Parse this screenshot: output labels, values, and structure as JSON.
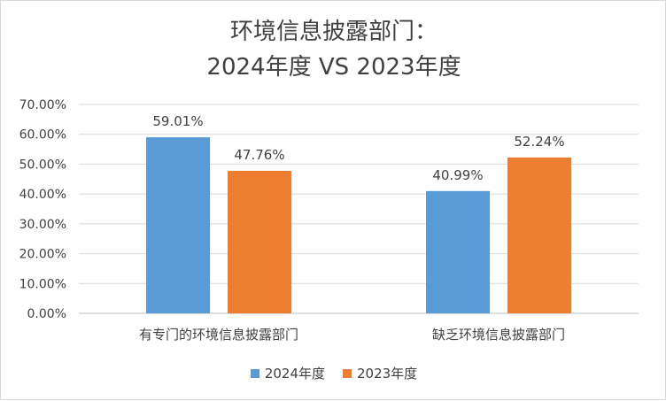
{
  "chart_data": {
    "type": "bar",
    "title_line1": "环境信息披露部门：",
    "title_line2": "2024年度 VS 2023年度",
    "categories": [
      "有专门的环境信息披露部门",
      "缺乏环境信息披露部门"
    ],
    "series": [
      {
        "name": "2024年度",
        "values": [
          59.01,
          40.99
        ],
        "labels": [
          "59.01%",
          "40.99%"
        ],
        "color": "#5B9BD5"
      },
      {
        "name": "2023年度",
        "values": [
          47.76,
          52.24
        ],
        "labels": [
          "47.76%",
          "52.24%"
        ],
        "color": "#ED7D31"
      }
    ],
    "y_ticks": [
      "0.00%",
      "10.00%",
      "20.00%",
      "30.00%",
      "40.00%",
      "50.00%",
      "60.00%",
      "70.00%"
    ],
    "ylim": [
      0,
      70
    ],
    "grid": true,
    "legend_position": "bottom"
  }
}
